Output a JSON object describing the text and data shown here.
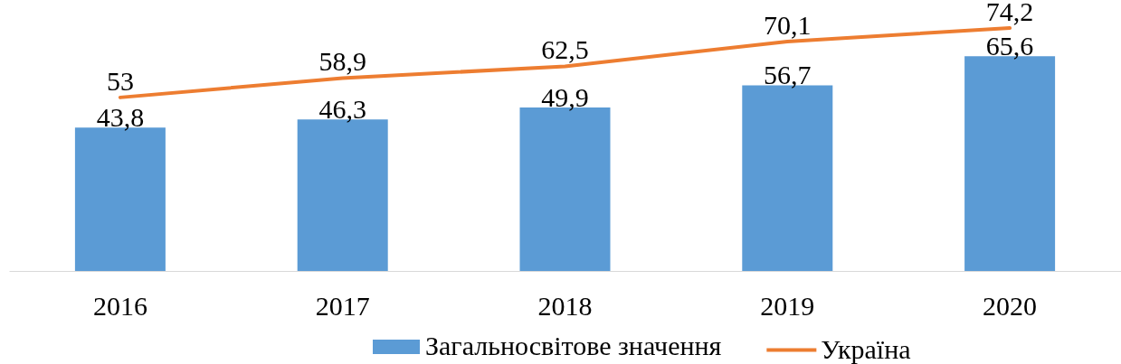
{
  "chart_data": {
    "type": "bar",
    "categories": [
      "2016",
      "2017",
      "2018",
      "2019",
      "2020"
    ],
    "series": [
      {
        "name": "Загальносвітове значення",
        "color": "#5b9bd5",
        "values": [
          43.8,
          46.3,
          49.9,
          56.7,
          65.6
        ],
        "value_labels": [
          "43,8",
          "46,3",
          "49,9",
          "56,7",
          "65,6"
        ]
      },
      {
        "name": "Україна",
        "type": "line",
        "color": "#ed7d31",
        "values": [
          53,
          58.9,
          62.5,
          70.1,
          74.2
        ],
        "value_labels": [
          "53",
          "58,9",
          "62,5",
          "70,1",
          "74,2"
        ]
      }
    ],
    "legend": "bottom",
    "line_style": "solid"
  }
}
